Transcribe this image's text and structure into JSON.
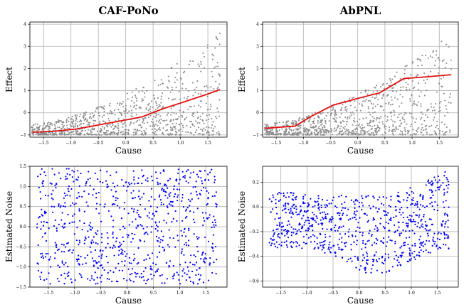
{
  "chart_data": [
    {
      "type": "scatter",
      "title": "CAF-PoNo",
      "xlabel": "Cause",
      "ylabel": "Effect",
      "xlim": [
        -1.75,
        1.85
      ],
      "ylim": [
        -1.1,
        4.1
      ],
      "xticks": [
        -1.5,
        -1.0,
        -0.5,
        0.0,
        0.5,
        1.0,
        1.5
      ],
      "yticks": [
        -1,
        0,
        1,
        2,
        3,
        4
      ],
      "xtick_labels": [
        "−1.5",
        "−1.0",
        "−0.5",
        "0.0",
        "0.5",
        "1.0",
        "1.5"
      ],
      "ytick_labels": [
        "−1",
        "0",
        "1",
        "2",
        "3",
        "4"
      ],
      "grid": true,
      "scatter": {
        "name": "",
        "color": "#8c8c8c",
        "n_points": 900,
        "kind": "effect_fan"
      },
      "series": [
        {
          "name": "",
          "color": "#e01010",
          "x": [
            -1.7,
            -1.3,
            -0.9,
            -0.5,
            -0.1,
            0.3,
            0.7,
            1.1,
            1.5,
            1.72
          ],
          "y": [
            -0.88,
            -0.83,
            -0.73,
            -0.55,
            -0.37,
            -0.18,
            0.2,
            0.52,
            0.85,
            1.05
          ]
        }
      ]
    },
    {
      "type": "scatter",
      "title": "AbPNL",
      "xlabel": "Cause",
      "ylabel": "Effect",
      "xlim": [
        -1.75,
        1.85
      ],
      "ylim": [
        -1.1,
        4.1
      ],
      "xticks": [
        -1.5,
        -1.0,
        -0.5,
        0.0,
        0.5,
        1.0,
        1.5
      ],
      "yticks": [
        -1,
        0,
        1,
        2,
        3,
        4
      ],
      "xtick_labels": [
        "−1.5",
        "−1.0",
        "−0.5",
        "0.0",
        "0.5",
        "1.0",
        "1.5"
      ],
      "ytick_labels": [
        "−1",
        "0",
        "1",
        "2",
        "3",
        "4"
      ],
      "grid": true,
      "scatter": {
        "name": "",
        "color": "#8c8c8c",
        "n_points": 900,
        "kind": "effect_fan"
      },
      "series": [
        {
          "name": "",
          "color": "#e01010",
          "x": [
            -1.7,
            -1.15,
            -0.85,
            -0.45,
            0.0,
            0.4,
            0.85,
            1.25,
            1.72
          ],
          "y": [
            -0.7,
            -0.6,
            -0.15,
            0.35,
            0.65,
            0.9,
            1.55,
            1.62,
            1.72
          ]
        }
      ]
    },
    {
      "type": "scatter",
      "title": "",
      "xlabel": "Cause",
      "ylabel": "Estimated Noise",
      "xlim": [
        -1.85,
        1.9
      ],
      "ylim": [
        -1.5,
        1.5
      ],
      "xticks": [
        -1.5,
        -1.0,
        -0.5,
        0.0,
        0.5,
        1.0,
        1.5
      ],
      "yticks": [
        -1.5,
        -1.0,
        -0.5,
        0.0,
        0.5,
        1.0,
        1.5
      ],
      "xtick_labels": [
        "−1.5",
        "−1.0",
        "−0.5",
        "0.0",
        "0.5",
        "1.0",
        "1.5"
      ],
      "ytick_labels": [
        "−1.5",
        "−1.0",
        "−0.5",
        "0.0",
        "0.5",
        "1.0",
        "1.5"
      ],
      "grid": true,
      "scatter": {
        "name": "",
        "color": "#0000ee",
        "n_points": 800,
        "kind": "uniform_noise"
      },
      "series": []
    },
    {
      "type": "scatter",
      "title": "",
      "xlabel": "Cause",
      "ylabel": "Estimated Noise",
      "xlim": [
        -1.85,
        1.9
      ],
      "ylim": [
        -0.65,
        0.33
      ],
      "xticks": [
        -1.5,
        -1.0,
        -0.5,
        0.0,
        0.5,
        1.0,
        1.5
      ],
      "yticks": [
        -0.6,
        -0.4,
        -0.2,
        0.0,
        0.2
      ],
      "xtick_labels": [
        "−1.5",
        "−1.0",
        "−0.5",
        "0.0",
        "0.5",
        "1.0",
        "1.5"
      ],
      "ytick_labels": [
        "−0.6",
        "−0.4",
        "−0.2",
        "0.0",
        "0.2"
      ],
      "grid": true,
      "scatter": {
        "name": "",
        "color": "#0000ee",
        "n_points": 800,
        "kind": "curved_noise"
      },
      "series": []
    }
  ]
}
